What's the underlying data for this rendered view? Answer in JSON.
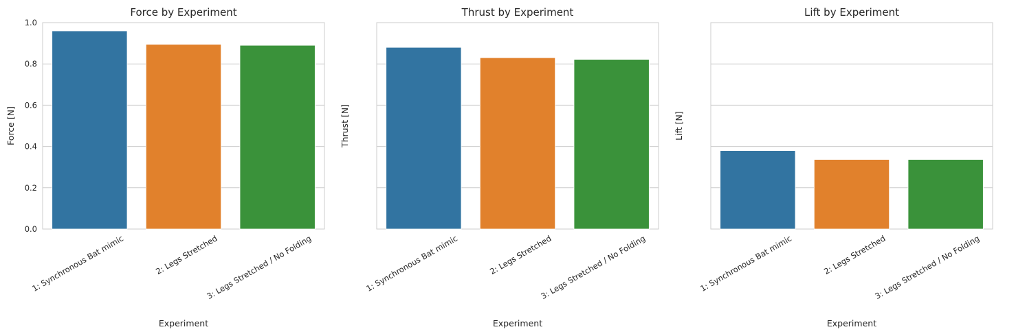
{
  "chart_data": [
    {
      "type": "bar",
      "title": "Force by Experiment",
      "xlabel": "Experiment",
      "ylabel": "Force [N]",
      "categories": [
        "1: Synchronous Bat mimic",
        "2: Legs Stretched",
        "3: Legs Stretched / No Folding"
      ],
      "values": [
        0.96,
        0.895,
        0.89
      ],
      "ylim": [
        0,
        1.0
      ],
      "yticks": [
        "0.0",
        "0.2",
        "0.4",
        "0.6",
        "0.8",
        "1.0"
      ],
      "show_ytick_labels": true,
      "grid": true,
      "colors": [
        "#3274a1",
        "#e1812c",
        "#3a923a"
      ]
    },
    {
      "type": "bar",
      "title": "Thrust by Experiment",
      "xlabel": "Experiment",
      "ylabel": "Thrust [N]",
      "categories": [
        "1: Synchronous Bat mimic",
        "2: Legs Stretched",
        "3: Legs Stretched / No Folding"
      ],
      "values": [
        0.88,
        0.83,
        0.822
      ],
      "ylim": [
        0,
        1.0
      ],
      "yticks": [
        "0.0",
        "0.2",
        "0.4",
        "0.6",
        "0.8",
        "1.0"
      ],
      "show_ytick_labels": false,
      "grid": true,
      "colors": [
        "#3274a1",
        "#e1812c",
        "#3a923a"
      ]
    },
    {
      "type": "bar",
      "title": "Lift by Experiment",
      "xlabel": "Experiment",
      "ylabel": "Lift [N]",
      "categories": [
        "1: Synchronous Bat mimic",
        "2: Legs Stretched",
        "3: Legs Stretched / No Folding"
      ],
      "values": [
        0.38,
        0.337,
        0.337
      ],
      "ylim": [
        0,
        1.0
      ],
      "yticks": [
        "0.0",
        "0.2",
        "0.4",
        "0.6",
        "0.8",
        "1.0"
      ],
      "show_ytick_labels": false,
      "grid": true,
      "colors": [
        "#3274a1",
        "#e1812c",
        "#3a923a"
      ]
    }
  ]
}
